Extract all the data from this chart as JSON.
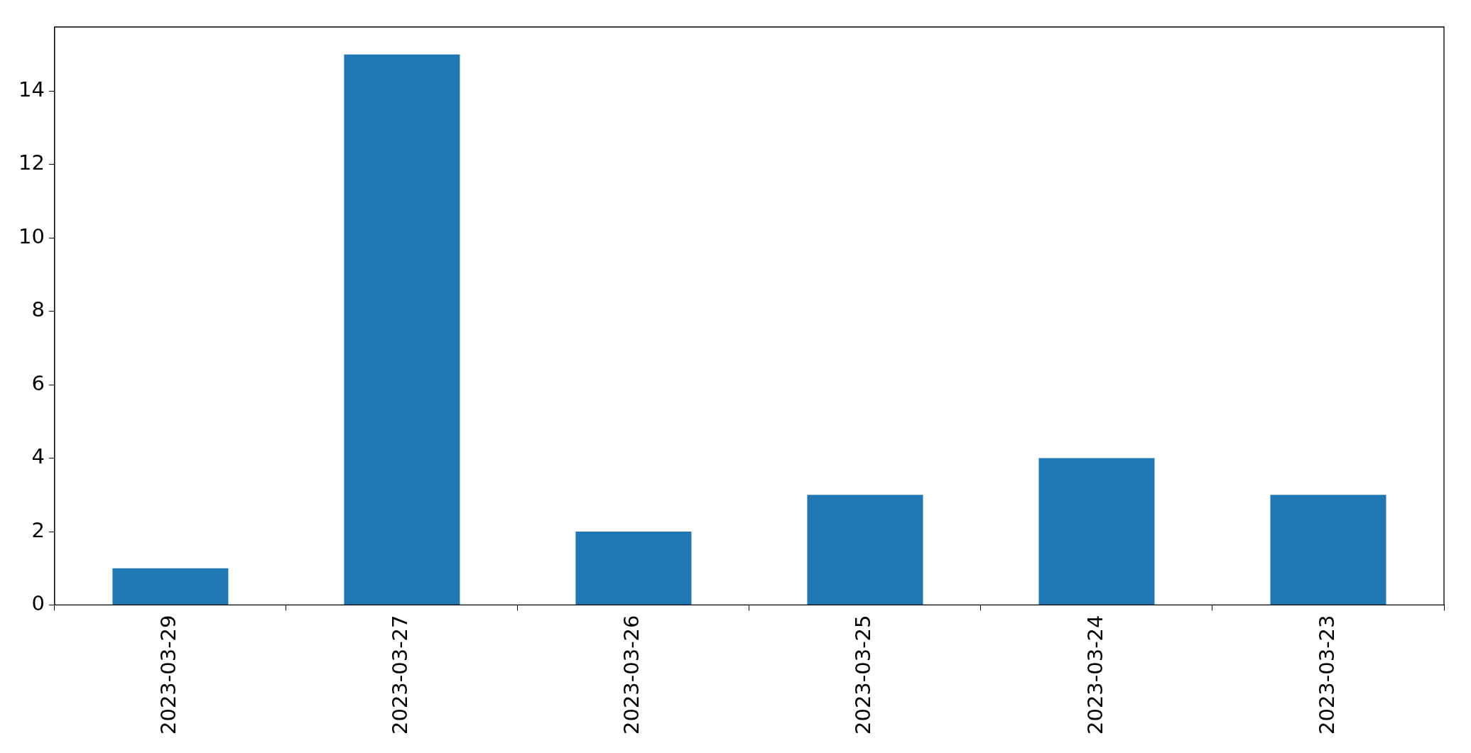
{
  "chart_data": {
    "type": "bar",
    "categories": [
      "2023-03-29",
      "2023-03-27",
      "2023-03-26",
      "2023-03-25",
      "2023-03-24",
      "2023-03-23"
    ],
    "values": [
      1,
      15,
      2,
      3,
      4,
      3
    ],
    "color": "#1f77b4",
    "ylim": [
      0,
      15.75
    ],
    "yticks": [
      0,
      2,
      4,
      6,
      8,
      10,
      12,
      14
    ],
    "grid": false,
    "legend": false
  }
}
